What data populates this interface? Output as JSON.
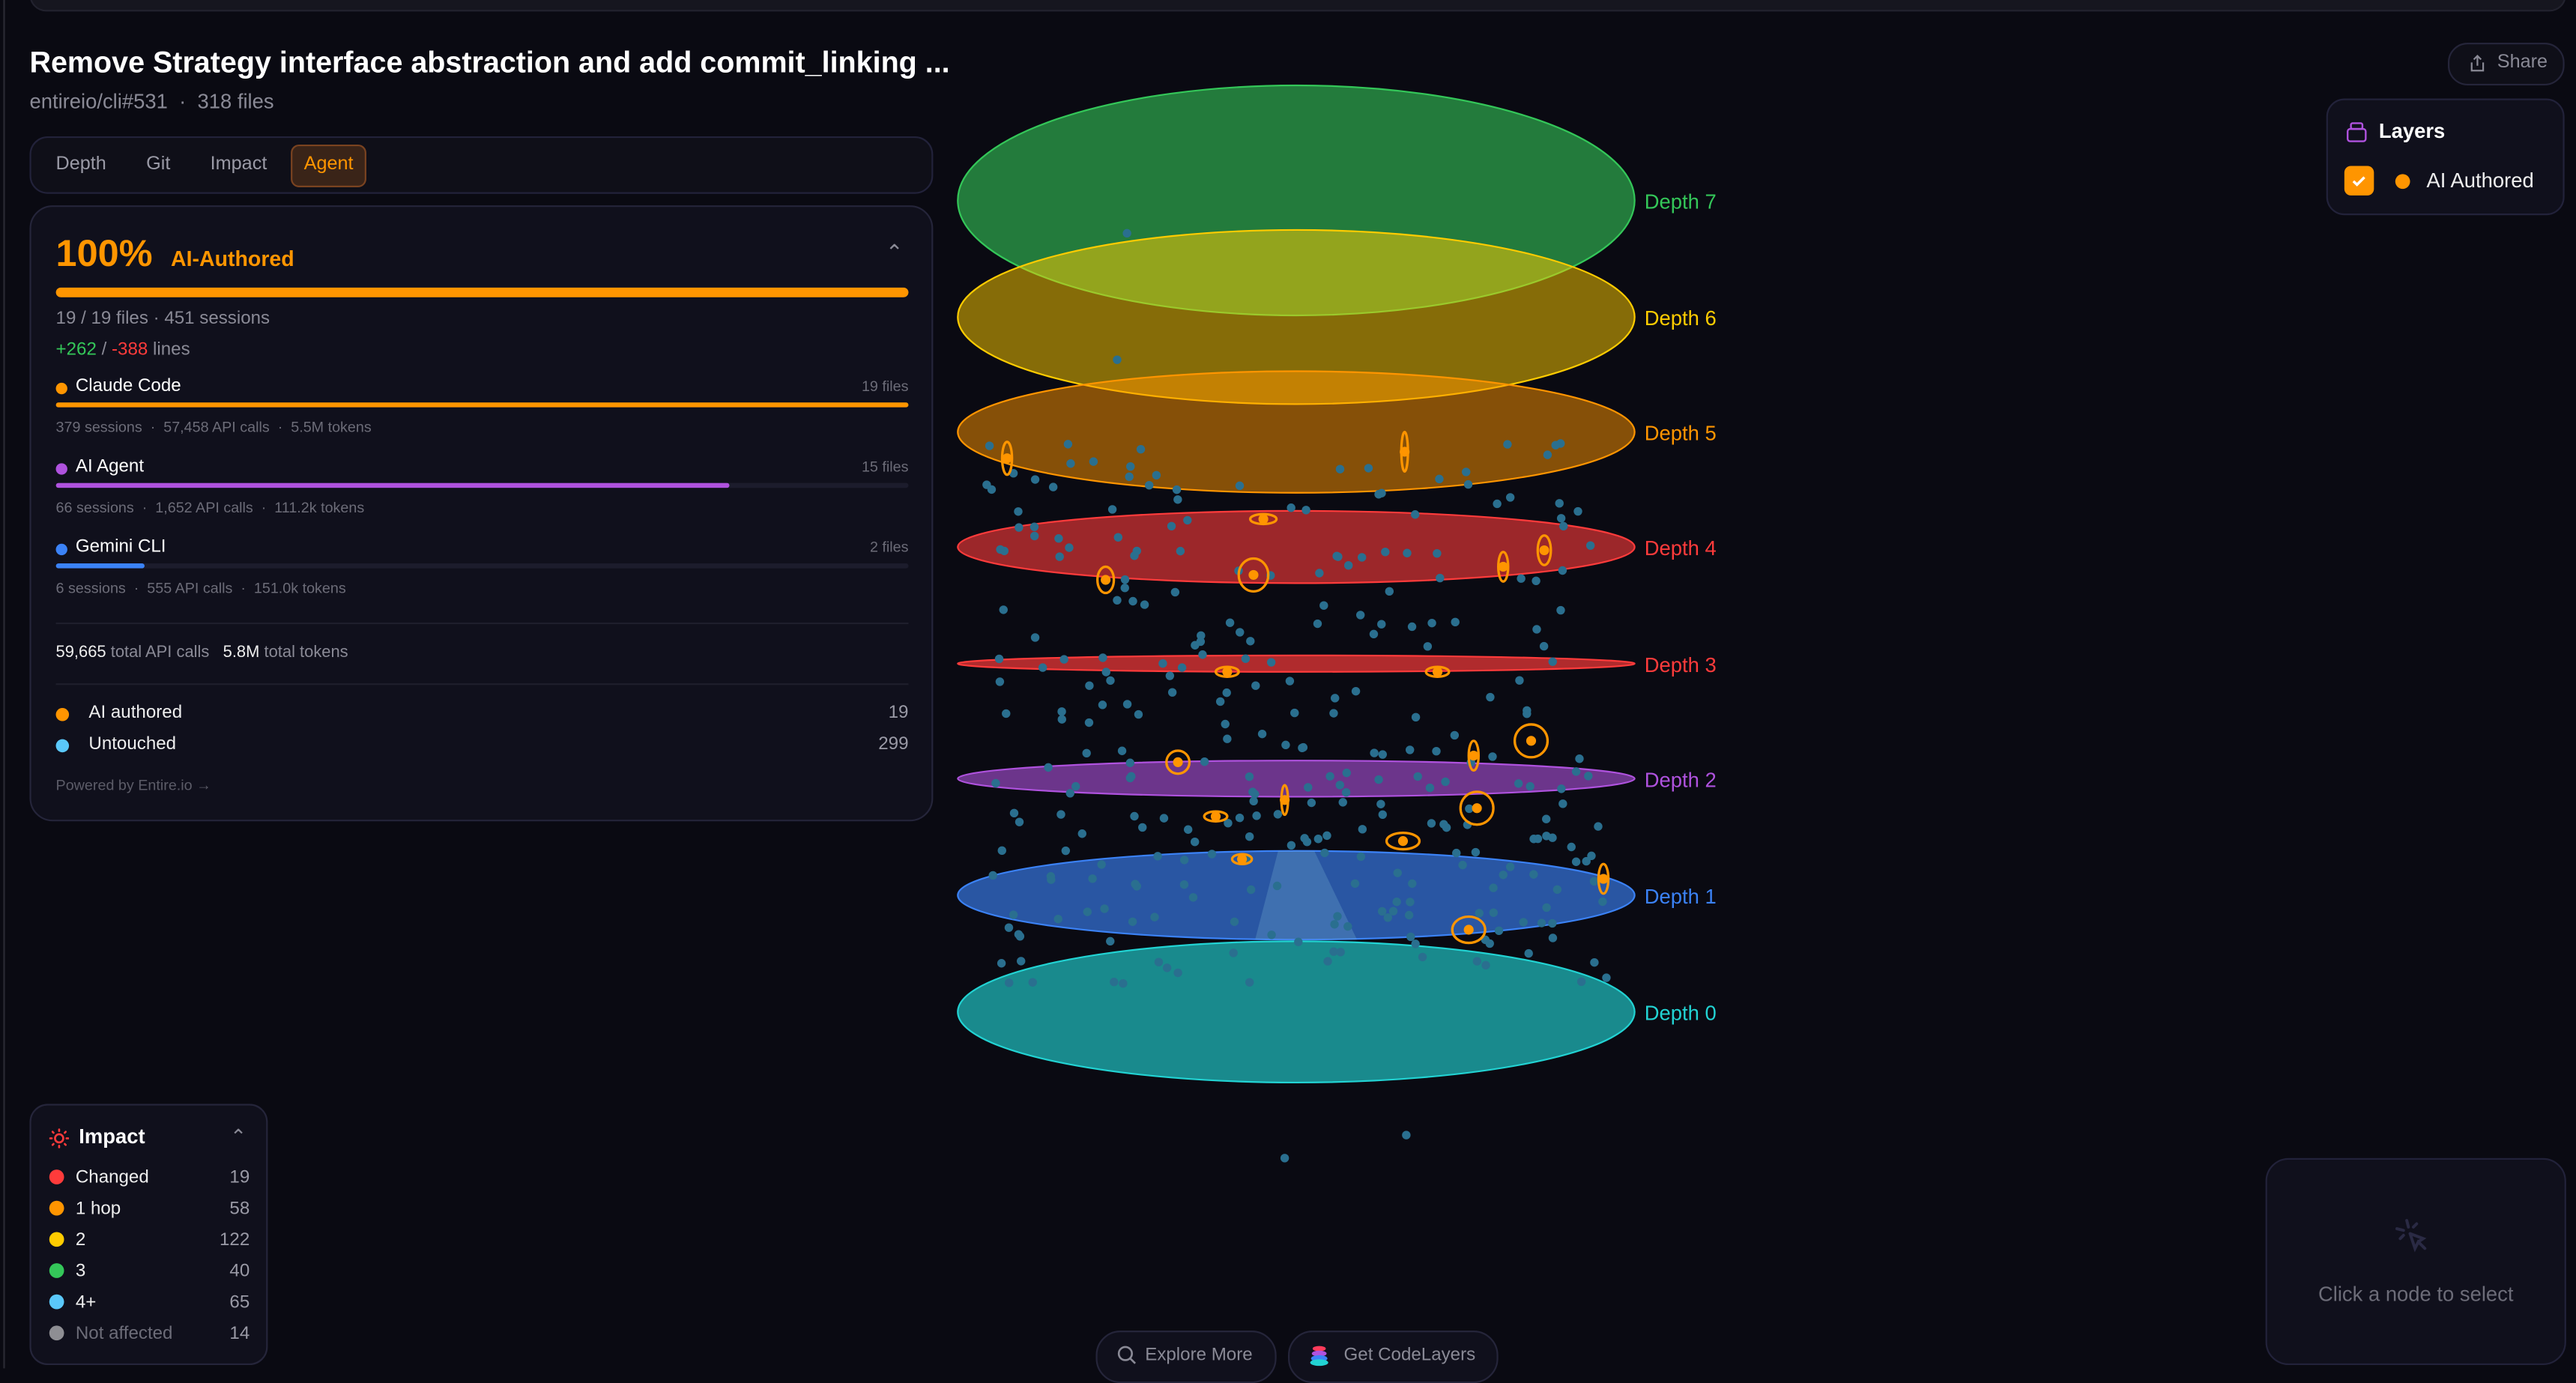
{
  "header": {
    "title": "Remove Strategy interface abstraction and add commit_linking ...",
    "repo": "entireio/cli#531",
    "separator": "·",
    "files": "318 files"
  },
  "tabs": [
    {
      "label": "Depth"
    },
    {
      "label": "Git"
    },
    {
      "label": "Impact"
    },
    {
      "label": "Agent",
      "active": true
    }
  ],
  "agent_card": {
    "percent": "100%",
    "percent_label": "AI-Authored",
    "progress_pct": 100,
    "files_summary": "19 / 19 files · 451 sessions",
    "added": "+262",
    "slash": "/",
    "removed": "-388",
    "lines_label": "lines",
    "agents": [
      {
        "name": "Claude Code",
        "files": "19 files",
        "fill_pct": 100,
        "color": "#ff9500",
        "stats": "379 sessions  ·  57,458 API calls  ·  5.5M tokens"
      },
      {
        "name": "AI Agent",
        "files": "15 files",
        "fill_pct": 79,
        "color": "#af52de",
        "stats": "66 sessions  ·  1,652 API calls  ·  111.2k tokens"
      },
      {
        "name": "Gemini CLI",
        "files": "2 files",
        "fill_pct": 10.5,
        "color": "#3b82f6",
        "stats": "6 sessions  ·  555 API calls  ·  151.0k tokens"
      }
    ],
    "total_api_calls": "59,665",
    "total_api_label": "total API calls",
    "total_tokens": "5.8M",
    "total_tokens_label": "total tokens",
    "legend": [
      {
        "label": "AI authored",
        "count": "19",
        "color": "#ff9500"
      },
      {
        "label": "Untouched",
        "count": "299",
        "color": "#5ac8fa"
      }
    ],
    "powered_by": "Powered by Entire.io →"
  },
  "impact": {
    "title": "Impact",
    "icon": "sun-icon",
    "items": [
      {
        "label": "Changed",
        "count": "19",
        "color": "#ff3b3b"
      },
      {
        "label": "1 hop",
        "count": "58",
        "color": "#ff9500"
      },
      {
        "label": "2",
        "count": "122",
        "color": "#ffcc00"
      },
      {
        "label": "3",
        "count": "40",
        "color": "#34c759"
      },
      {
        "label": "4+",
        "count": "65",
        "color": "#5ac8fa"
      },
      {
        "label": "Not affected",
        "count": "14",
        "color": "#8e8e93",
        "muted": true
      }
    ]
  },
  "share": {
    "label": "Share",
    "icon": "share-icon"
  },
  "layers": {
    "title": "Layers",
    "icon": "layers-icon",
    "items": [
      {
        "label": "AI Authored",
        "checked": true,
        "color": "#ff9500"
      }
    ]
  },
  "scene": {
    "layers": [
      {
        "label": "Depth 7",
        "color": "#34c759"
      },
      {
        "label": "Depth 6",
        "color": "#ffcc00"
      },
      {
        "label": "Depth 5",
        "color": "#ff9500"
      },
      {
        "label": "Depth 4",
        "color": "#ff3b3b"
      },
      {
        "label": "Depth 3",
        "color": "#ff3b3b"
      },
      {
        "label": "Depth 2",
        "color": "#af52de"
      },
      {
        "label": "Depth 1",
        "color": "#3b82f6"
      },
      {
        "label": "Depth 0",
        "color": "#22d3d3"
      }
    ],
    "node_color": "#2a6f8f",
    "highlight_color": "#ff9500"
  },
  "selection": {
    "hint": "Click a node to select",
    "icon": "cursor-click-icon"
  },
  "bottom": {
    "explore": "Explore More",
    "get": "Get CodeLayers"
  }
}
